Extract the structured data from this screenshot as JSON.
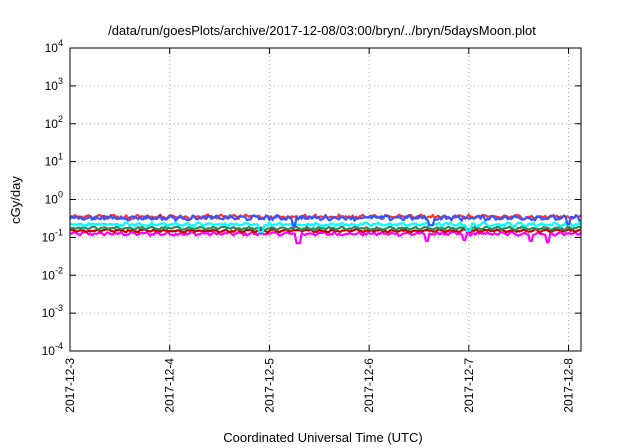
{
  "chart_data": {
    "type": "line",
    "title": "/data/run/goesPlots/archive/2017-12-08/03:00/bryn/../bryn/5daysMoon.plot",
    "xlabel": "Coordinated Universal Time (UTC)",
    "ylabel": "cGy/day",
    "y_scale": "log",
    "ylim": [
      0.0001,
      10000
    ],
    "y_ticks": [
      {
        "value": 0.0001,
        "base": "10",
        "exp": "-4"
      },
      {
        "value": 0.001,
        "base": "10",
        "exp": "-3"
      },
      {
        "value": 0.01,
        "base": "10",
        "exp": "-2"
      },
      {
        "value": 0.1,
        "base": "10",
        "exp": "-1"
      },
      {
        "value": 1,
        "base": "10",
        "exp": "0"
      },
      {
        "value": 10,
        "base": "10",
        "exp": "1"
      },
      {
        "value": 100,
        "base": "10",
        "exp": "2"
      },
      {
        "value": 1000,
        "base": "10",
        "exp": "3"
      },
      {
        "value": 10000,
        "base": "10",
        "exp": "4"
      }
    ],
    "xlim": [
      "2017-12-03T00:00",
      "2017-12-08T03:00"
    ],
    "x_ticks": [
      "2017-12-3",
      "2017-12-4",
      "2017-12-5",
      "2017-12-6",
      "2017-12-7",
      "2017-12-8"
    ],
    "x_tick_dates": [
      "2017-12-03T00:00",
      "2017-12-04T00:00",
      "2017-12-05T00:00",
      "2017-12-06T00:00",
      "2017-12-07T00:00",
      "2017-12-08T00:00"
    ],
    "grid": true,
    "series": [
      {
        "color": "#ff00ff",
        "level": 0.125,
        "noise": 0.08,
        "dips": [
          [
            "2017-12-05T07:00",
            0.07
          ],
          [
            "2017-12-06T14:00",
            0.08
          ],
          [
            "2017-12-06T23:00",
            0.085
          ],
          [
            "2017-12-07T15:00",
            0.08
          ],
          [
            "2017-12-07T19:00",
            0.075
          ]
        ]
      },
      {
        "color": "#cc0000",
        "level": 0.15,
        "noise": 0.06,
        "dips": []
      },
      {
        "color": "#2e8b57",
        "level": 0.175,
        "noise": 0.06,
        "dips": []
      },
      {
        "color": "#00ffff",
        "level": 0.22,
        "noise": 0.08,
        "dips": [
          [
            "2017-12-04T22:00",
            0.14
          ],
          [
            "2017-12-07T00:00",
            0.15
          ]
        ]
      },
      {
        "color": "#ff3030",
        "level": 0.35,
        "noise": 0.1,
        "dips": []
      },
      {
        "color": "#3355ff",
        "level": 0.33,
        "noise": 0.12,
        "dips": [
          [
            "2017-12-05T06:00",
            0.2
          ],
          [
            "2017-12-06T15:00",
            0.21
          ],
          [
            "2017-12-08T00:00",
            0.22
          ]
        ]
      }
    ]
  }
}
